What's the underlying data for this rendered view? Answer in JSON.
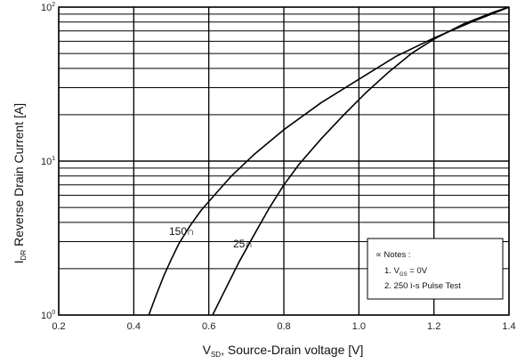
{
  "chart_data": {
    "type": "line",
    "xlabel_main": "V",
    "xlabel_sub": "SD",
    "xlabel_rest": ", Source-Drain voltage [V]",
    "ylabel_main": "I",
    "ylabel_sub": "DR",
    "ylabel_rest": "  Reverse Drain Current [A]",
    "xlim": [
      0.2,
      1.4
    ],
    "ylim": [
      1,
      100
    ],
    "yscale": "log",
    "grid": true,
    "x_ticks": [
      "0.2",
      "0.4",
      "0.6",
      "0.8",
      "1.0",
      "1.2",
      "1.4"
    ],
    "y_ticks": [
      {
        "base": "10",
        "exp": "0"
      },
      {
        "base": "10",
        "exp": "1"
      },
      {
        "base": "10",
        "exp": "2"
      }
    ],
    "series": [
      {
        "name": "150∩",
        "x": [
          0.44,
          0.46,
          0.48,
          0.5,
          0.52,
          0.55,
          0.58,
          0.62,
          0.66,
          0.72,
          0.8,
          0.9,
          1.0,
          1.1,
          1.2,
          1.3,
          1.4
        ],
        "y": [
          1.0,
          1.35,
          1.8,
          2.3,
          2.9,
          3.8,
          4.8,
          6.2,
          8.0,
          11.0,
          16.0,
          24.0,
          34.0,
          48.0,
          63.0,
          80.0,
          100.0
        ]
      },
      {
        "name": "25∩",
        "x": [
          0.61,
          0.64,
          0.68,
          0.72,
          0.76,
          0.8,
          0.84,
          0.9,
          0.96,
          1.02,
          1.08,
          1.14,
          1.2,
          1.28,
          1.36,
          1.4
        ],
        "y": [
          1.0,
          1.4,
          2.2,
          3.3,
          4.9,
          7.0,
          9.5,
          14.0,
          20.0,
          28.0,
          38.0,
          50.0,
          62.0,
          78.0,
          93.0,
          100.0
        ]
      }
    ],
    "annotations": {
      "notes_title": "∝ Notes :",
      "note1_prefix": "1. V",
      "note1_sub": "GS",
      "note1_suffix": " = 0V",
      "note2": "2. 250 ì-s Pulse Test"
    }
  }
}
